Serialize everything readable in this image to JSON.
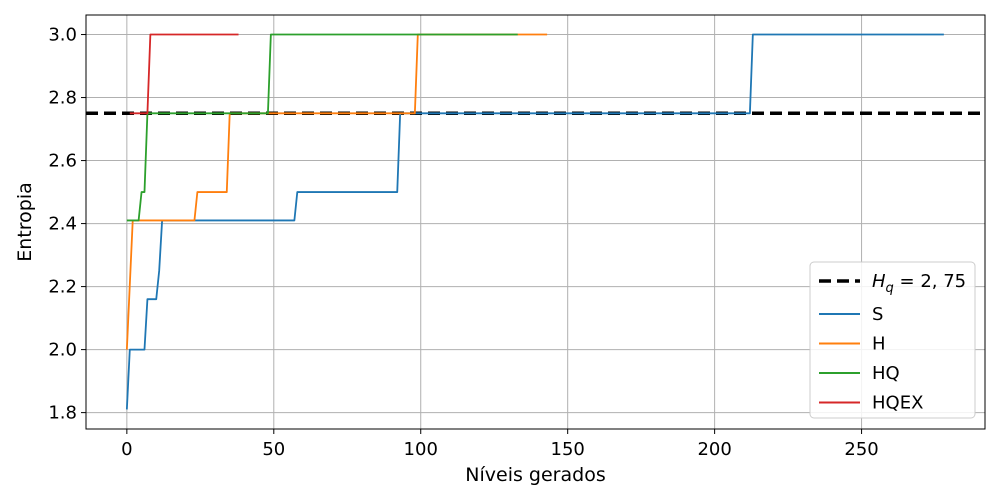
{
  "chart_data": {
    "type": "line",
    "title": "",
    "xlabel": "Níveis gerados",
    "ylabel": "Entropia",
    "xlim": [
      -13.9,
      292
    ],
    "ylim": [
      1.748,
      3.062
    ],
    "xticks": [
      0,
      50,
      100,
      150,
      200,
      250
    ],
    "yticks": [
      1.8,
      2.0,
      2.2,
      2.4,
      2.6,
      2.8,
      3.0
    ],
    "xtick_labels": [
      "0",
      "50",
      "100",
      "150",
      "200",
      "250"
    ],
    "ytick_labels": [
      "1.8",
      "2.0",
      "2.2",
      "2.4",
      "2.6",
      "2.8",
      "3.0"
    ],
    "grid": true,
    "legend_position": "lower-right",
    "reference_line": {
      "y": 2.75,
      "label_main": "H",
      "label_sub": "q",
      "label_rest": " = 2, 75",
      "color": "#000000",
      "dashed": true
    },
    "series": [
      {
        "name": "S",
        "color": "#1f77b4",
        "x": [
          0,
          1,
          6,
          7,
          10,
          11,
          12,
          57,
          58,
          92,
          93,
          212,
          213,
          278
        ],
        "y": [
          1.81,
          2.0,
          2.0,
          2.16,
          2.16,
          2.25,
          2.41,
          2.41,
          2.5,
          2.5,
          2.75,
          2.75,
          3.0,
          3.0
        ]
      },
      {
        "name": "H",
        "color": "#ff7f0e",
        "x": [
          0,
          2,
          23,
          24,
          34,
          35,
          98,
          99,
          143
        ],
        "y": [
          2.0,
          2.41,
          2.41,
          2.5,
          2.5,
          2.75,
          2.75,
          3.0,
          3.0
        ]
      },
      {
        "name": "HQ",
        "color": "#2ca02c",
        "x": [
          0,
          4,
          5,
          6,
          7,
          48,
          49,
          133
        ],
        "y": [
          2.41,
          2.41,
          2.5,
          2.5,
          2.75,
          2.75,
          3.0,
          3.0
        ]
      },
      {
        "name": "HQEX",
        "color": "#d62728",
        "x": [
          1,
          7,
          8,
          38
        ],
        "y": [
          2.75,
          2.75,
          3.0,
          3.0
        ]
      }
    ]
  }
}
